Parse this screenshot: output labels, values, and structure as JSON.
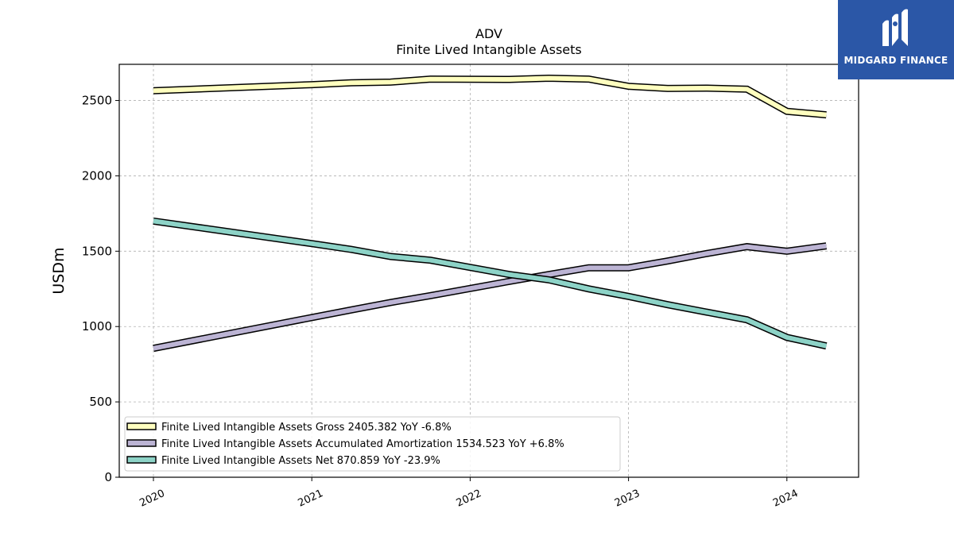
{
  "chart_data": {
    "type": "line",
    "title": "ADV",
    "subtitle": "Finite Lived Intangible Assets",
    "ylabel": "USDm",
    "xlabel": "",
    "ylim": [
      0,
      2740
    ],
    "yticks": [
      0,
      500,
      1000,
      1500,
      2000,
      2500
    ],
    "xtick_labels": [
      "2020",
      "2021",
      "2022",
      "2023",
      "2024"
    ],
    "grid": true,
    "legend_position": "lower-left",
    "x": [
      "2019-12-31",
      "2020-12-31",
      "2021-03-31",
      "2021-06-30",
      "2021-09-30",
      "2022-03-31",
      "2022-06-30",
      "2022-09-30",
      "2022-12-31",
      "2023-03-31",
      "2023-06-30",
      "2023-09-30",
      "2023-12-31",
      "2024-03-31"
    ],
    "series": [
      {
        "name": "Finite Lived Intangible Assets Gross  2405.382 YoY -6.8%",
        "color": "#ffffbf",
        "values": [
          2565,
          2605,
          2618,
          2622,
          2642,
          2640,
          2648,
          2642,
          2594,
          2580,
          2582,
          2575,
          2428,
          2405
        ]
      },
      {
        "name": "Finite Lived Intangible Assets Accumulated Amortization  1534.523 YoY +6.8%",
        "color": "#bcb4d4",
        "values": [
          855,
          1060,
          1110,
          1160,
          1205,
          1300,
          1345,
          1390,
          1390,
          1435,
          1485,
          1530,
          1500,
          1535
        ]
      },
      {
        "name": "Finite Lived Intangible Assets Net  870.859 YoY -23.9%",
        "color": "#8dd3c7",
        "values": [
          1700,
          1550,
          1512,
          1465,
          1440,
          1345,
          1310,
          1250,
          1200,
          1145,
          1095,
          1045,
          928,
          871
        ]
      }
    ]
  },
  "logo": {
    "text": "MIDGARD FINANCE",
    "icon": "midgard-logo-icon",
    "background": "#2b57a7"
  }
}
